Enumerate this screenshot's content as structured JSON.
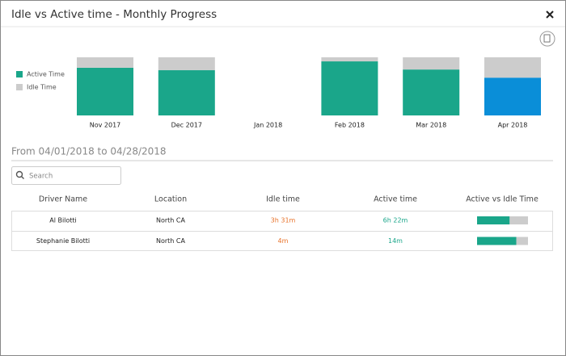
{
  "header": {
    "title": "Idle vs Active time - Monthly Progress"
  },
  "chart_data": {
    "type": "bar",
    "stacked": true,
    "categories": [
      "Nov 2017",
      "Dec 2017",
      "Jan 2018",
      "Feb 2018",
      "Mar 2018",
      "Apr 2018"
    ],
    "series": [
      {
        "name": "Active Time",
        "color": "#1aa68a",
        "values": [
          82,
          78,
          null,
          93,
          79,
          65
        ]
      },
      {
        "name": "Idle Time",
        "color": "#cccccc",
        "values": [
          18,
          22,
          null,
          7,
          21,
          35
        ]
      }
    ],
    "highlight_index": 5,
    "highlight_color": "#0a8ed8",
    "ylim": [
      0,
      100
    ],
    "legend": "left"
  },
  "range_label": "From 04/01/2018 to 04/28/2018",
  "search": {
    "placeholder": "Search"
  },
  "table": {
    "headers": [
      "Driver Name",
      "Location",
      "Idle time",
      "Active time",
      "Active vs Idle Time"
    ],
    "rows": [
      {
        "cells": [
          "Al Bilotti",
          "North CA",
          "3h 31m",
          "6h 22m"
        ],
        "bar": {
          "active": 64,
          "idle": 36
        }
      },
      {
        "cells": [
          "Stephanie Bilotti",
          "North CA",
          "4m",
          "14m"
        ],
        "bar": {
          "active": 77,
          "idle": 23
        }
      }
    ]
  }
}
